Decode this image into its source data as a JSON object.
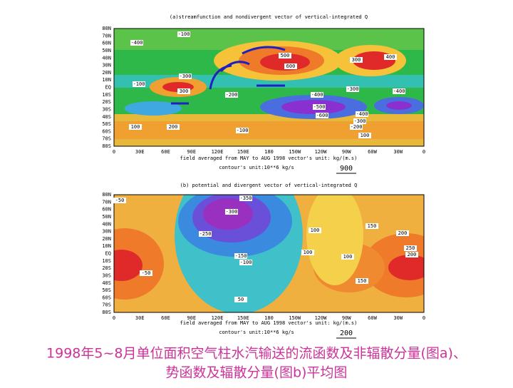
{
  "panel_a": {
    "title": "(a)streamfunction and nondivergent vector of vertical-integrated Q",
    "lat_labels": [
      "80N",
      "70N",
      "60N",
      "50N",
      "40N",
      "30N",
      "20N",
      "10N",
      "EQ",
      "10S",
      "20S",
      "30S",
      "40S",
      "50S",
      "60S",
      "70S",
      "80S"
    ],
    "lon_labels": [
      "0",
      "30E",
      "60E",
      "90E",
      "120E",
      "150E",
      "180",
      "150W",
      "120W",
      "90W",
      "60W",
      "30W",
      "0"
    ],
    "footer_line1": "field averaged from   MAY   to AUG 1998 vector's unit: kg/(m.s)",
    "footer_line2": "contour's unit:10**6 kg/s",
    "vector_scale": "900",
    "contour_labels": [
      "-100",
      "-400",
      "500",
      "600",
      "300",
      "400",
      "300",
      "-300",
      "-100",
      "-200",
      "-400",
      "-300",
      "-400",
      "-500",
      "-600",
      "-400",
      "-300",
      "-200",
      "-100",
      "100",
      "200",
      "100"
    ]
  },
  "panel_b": {
    "title": "(b) potential and divergent vector of vertical-integrated Q",
    "lat_labels": [
      "80N",
      "70N",
      "60N",
      "50N",
      "40N",
      "30N",
      "20N",
      "10N",
      "EQ",
      "10S",
      "20S",
      "30S",
      "40S",
      "50S",
      "60S",
      "70S",
      "80S"
    ],
    "lon_labels": [
      "0",
      "30E",
      "60E",
      "90E",
      "120E",
      "150E",
      "180",
      "150W",
      "120W",
      "90W",
      "60W",
      "30W",
      "0"
    ],
    "footer_line1": "field averaged from   MAY   to AUG 1998 vector's unit: kg/(m.s)",
    "footer_line2": "contour's unit:10**6 kg/s",
    "vector_scale": "200",
    "contour_labels": [
      "-350",
      "-300",
      "-250",
      "-150",
      "-100",
      "-50",
      "200",
      "250",
      "200",
      "150",
      "100",
      "150",
      "100",
      "50",
      "-50",
      "100"
    ]
  },
  "caption": {
    "line1": "1998年5~8月单位面积空气柱水汽输送的流函数及非辐散分量(图a)、",
    "line2": "势函数及辐散分量(图b)平均图"
  }
}
